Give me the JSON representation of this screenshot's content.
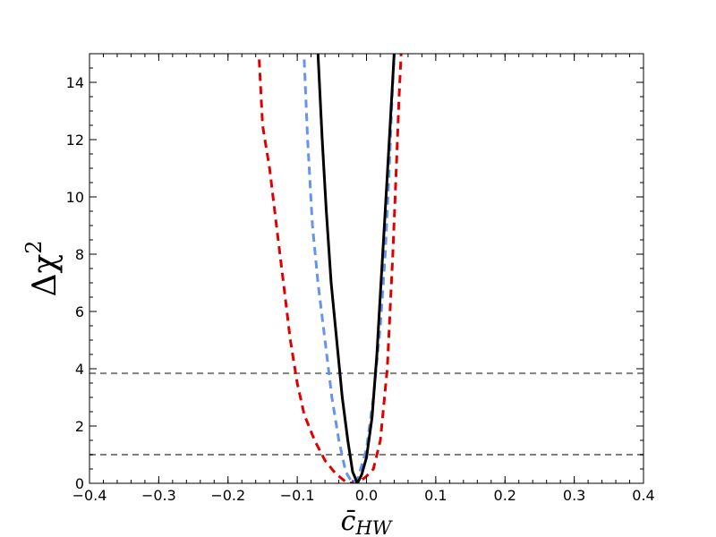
{
  "chart_data": {
    "type": "line",
    "title": "",
    "xlabel_main": "c̄",
    "xlabel_sub": "HW",
    "ylabel_main": "Δχ",
    "ylabel_sup": "2",
    "xlim": [
      -0.4,
      0.4
    ],
    "ylim": [
      0,
      15
    ],
    "x_ticks": [
      -0.4,
      -0.3,
      -0.2,
      -0.1,
      0.0,
      0.1,
      0.2,
      0.3,
      0.4
    ],
    "x_tick_labels": [
      "−0.4",
      "−0.3",
      "−0.2",
      "−0.1",
      "0.0",
      "0.1",
      "0.2",
      "0.3",
      "0.4"
    ],
    "y_ticks": [
      0,
      2,
      4,
      6,
      8,
      10,
      12,
      14
    ],
    "y_tick_labels": [
      "0",
      "2",
      "4",
      "6",
      "8",
      "10",
      "12",
      "14"
    ],
    "grid": false,
    "reference_lines": [
      {
        "y": 1.0,
        "color": "#808080",
        "style": "dashed"
      },
      {
        "y": 3.84,
        "color": "#808080",
        "style": "dashed"
      }
    ],
    "series": [
      {
        "color": "#e00000",
        "style": "dashed",
        "points": [
          [
            -0.155,
            14.8
          ],
          [
            -0.15,
            12.5
          ],
          [
            -0.14,
            11.0
          ],
          [
            -0.13,
            9.0
          ],
          [
            -0.12,
            7.0
          ],
          [
            -0.11,
            5.0
          ],
          [
            -0.1,
            3.5
          ],
          [
            -0.09,
            2.4
          ],
          [
            -0.075,
            1.5
          ],
          [
            -0.06,
            0.8
          ],
          [
            -0.045,
            0.35
          ],
          [
            -0.03,
            0.05
          ],
          [
            -0.02,
            0.0
          ],
          [
            -0.01,
            0.05
          ],
          [
            0.0,
            0.25
          ],
          [
            0.01,
            0.5
          ],
          [
            0.02,
            1.5
          ],
          [
            0.03,
            4.0
          ],
          [
            0.038,
            8.0
          ],
          [
            0.043,
            11.0
          ],
          [
            0.047,
            13.5
          ],
          [
            0.05,
            15.0
          ]
        ]
      },
      {
        "color": "#6495ed",
        "style": "dashed",
        "points": [
          [
            -0.09,
            14.8
          ],
          [
            -0.085,
            12.0
          ],
          [
            -0.078,
            9.0
          ],
          [
            -0.07,
            7.0
          ],
          [
            -0.06,
            5.0
          ],
          [
            -0.05,
            3.0
          ],
          [
            -0.04,
            1.5
          ],
          [
            -0.03,
            0.4
          ],
          [
            -0.02,
            0.0
          ],
          [
            -0.012,
            0.2
          ],
          [
            0.0,
            1.2
          ],
          [
            0.01,
            3.0
          ],
          [
            0.02,
            5.5
          ],
          [
            0.027,
            8.0
          ],
          [
            0.033,
            11.0
          ],
          [
            0.037,
            13.5
          ],
          [
            0.04,
            15.0
          ]
        ]
      },
      {
        "color": "#000000",
        "style": "solid",
        "points": [
          [
            -0.07,
            15.0
          ],
          [
            -0.064,
            12.0
          ],
          [
            -0.058,
            9.5
          ],
          [
            -0.051,
            7.0
          ],
          [
            -0.043,
            5.0
          ],
          [
            -0.035,
            3.0
          ],
          [
            -0.027,
            1.5
          ],
          [
            -0.02,
            0.4
          ],
          [
            -0.013,
            0.0
          ],
          [
            -0.007,
            0.3
          ],
          [
            0.0,
            0.9
          ],
          [
            0.008,
            2.3
          ],
          [
            0.015,
            4.5
          ],
          [
            0.021,
            7.0
          ],
          [
            0.027,
            9.5
          ],
          [
            0.033,
            12.0
          ],
          [
            0.04,
            15.0
          ]
        ]
      }
    ]
  }
}
